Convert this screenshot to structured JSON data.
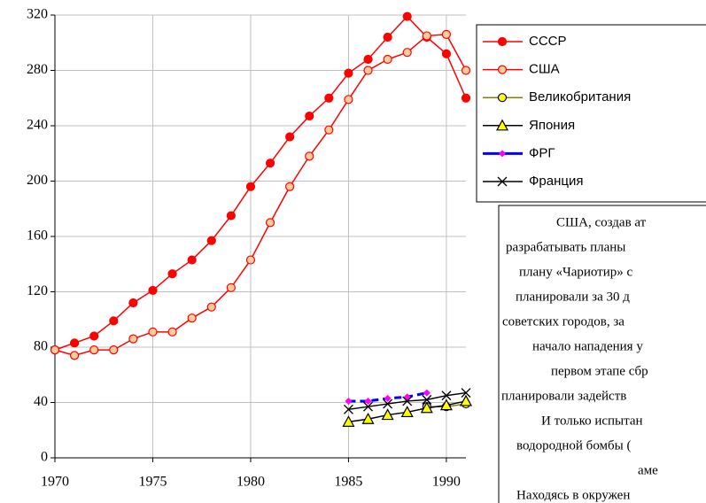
{
  "chart_data": {
    "type": "line",
    "x": [
      1970,
      1971,
      1972,
      1973,
      1974,
      1975,
      1976,
      1977,
      1978,
      1979,
      1980,
      1981,
      1982,
      1983,
      1984,
      1985,
      1986,
      1987,
      1988,
      1989,
      1990,
      1991
    ],
    "series": [
      {
        "name": "СССР",
        "color": "#ff0000",
        "marker": "circle",
        "marker_fill": "#ff0000",
        "values": [
          78,
          83,
          88,
          99,
          112,
          121,
          133,
          143,
          157,
          175,
          196,
          213,
          232,
          247,
          260,
          278,
          288,
          304,
          319,
          304,
          292,
          260
        ]
      },
      {
        "name": "США",
        "color": "#ff0000",
        "marker": "circle",
        "marker_fill": "#ffcc99",
        "values": [
          78,
          74,
          78,
          78,
          86,
          91,
          91,
          101,
          109,
          123,
          143,
          170,
          196,
          218,
          237,
          259,
          280,
          288,
          293,
          305,
          306,
          280
        ]
      },
      {
        "name": "Великобритания",
        "color": "#808000",
        "marker": "circle",
        "marker_fill": "#ffff00",
        "marker_stroke": "#000080",
        "values": [
          null,
          null,
          null,
          null,
          null,
          null,
          null,
          null,
          null,
          null,
          null,
          null,
          null,
          null,
          null,
          null,
          null,
          null,
          null,
          37,
          37,
          39
        ]
      },
      {
        "name": "Япония",
        "color": "#000000",
        "marker": "triangle",
        "marker_fill": "#ffff00",
        "values": [
          null,
          null,
          null,
          null,
          null,
          null,
          null,
          null,
          null,
          null,
          null,
          null,
          null,
          null,
          null,
          26,
          28,
          31,
          33,
          36,
          38,
          41
        ]
      },
      {
        "name": "ФРГ",
        "color": "#0000ff",
        "marker": "diamond",
        "marker_fill": "#ff00ff",
        "dashed": true,
        "values": [
          null,
          null,
          null,
          null,
          null,
          null,
          null,
          null,
          null,
          null,
          null,
          null,
          null,
          null,
          null,
          41,
          41,
          43,
          44,
          47,
          null,
          null
        ]
      },
      {
        "name": "Франция",
        "color": "#000000",
        "marker": "x",
        "marker_fill": "none",
        "values": [
          null,
          null,
          null,
          null,
          null,
          null,
          null,
          null,
          null,
          null,
          null,
          null,
          null,
          null,
          null,
          35,
          37,
          39,
          41,
          42,
          45,
          47
        ]
      }
    ],
    "xlim": [
      1970,
      1991
    ],
    "xticks": [
      1970,
      1975,
      1980,
      1985,
      1990
    ],
    "ylim": [
      0,
      320
    ],
    "yticks": [
      0,
      40,
      80,
      120,
      160,
      200,
      240,
      280,
      320
    ],
    "grid": true
  },
  "note": {
    "lines": [
      "США, создав ат",
      "разрабатывать планы",
      "плану «Чариотир» с",
      "планировали за 30 д",
      "советских городов, за",
      "начало нападения у",
      "первом этапе сбр",
      "планировали задейств",
      "И только испытан",
      "водородной бомбы (",
      "аме",
      "Находясь в окружен"
    ]
  }
}
